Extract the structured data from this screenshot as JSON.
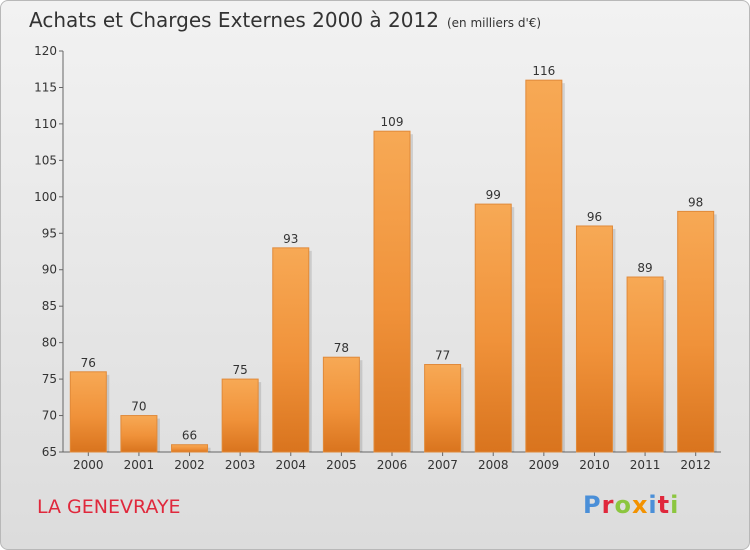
{
  "title": "Achats et Charges Externes 2000 à 2012",
  "unit": "(en milliers d'€)",
  "location": "LA GENEVRAYE",
  "logo": {
    "text": "Proxiti",
    "letters": [
      {
        "ch": "P",
        "color": "#4a8fd8"
      },
      {
        "ch": "r",
        "color": "#e0283c"
      },
      {
        "ch": "o",
        "color": "#8cc63f"
      },
      {
        "ch": "x",
        "color": "#f39200"
      },
      {
        "ch": "i",
        "color": "#4a8fd8"
      },
      {
        "ch": "t",
        "color": "#e0283c"
      },
      {
        "ch": "i",
        "color": "#8cc63f"
      }
    ]
  },
  "chart_data": {
    "type": "bar",
    "categories": [
      "2000",
      "2001",
      "2002",
      "2003",
      "2004",
      "2005",
      "2006",
      "2007",
      "2008",
      "2009",
      "2010",
      "2011",
      "2012"
    ],
    "values": [
      76,
      70,
      66,
      75,
      93,
      78,
      109,
      77,
      99,
      116,
      96,
      89,
      98
    ],
    "ylim": [
      65,
      120
    ],
    "yticks": [
      65,
      70,
      75,
      80,
      85,
      90,
      95,
      100,
      105,
      110,
      115,
      120
    ],
    "grid": false,
    "bar_color": "#f0923a",
    "bar_color_light": "#f7a955",
    "bar_color_dark": "#d9741e"
  }
}
